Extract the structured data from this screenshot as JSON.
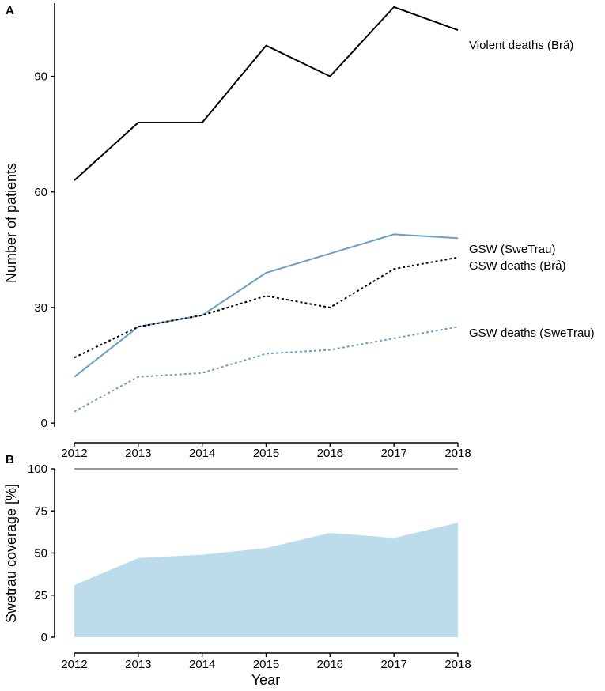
{
  "chart_data": [
    {
      "panel": "A",
      "type": "line",
      "title": "",
      "xlabel": "",
      "ylabel": "Number of patients",
      "x": [
        2012,
        2013,
        2014,
        2015,
        2016,
        2017,
        2018
      ],
      "xticks": [
        "2012",
        "2013",
        "2014",
        "2015",
        "2016",
        "2017",
        "2018"
      ],
      "yticks": [
        "0",
        "30",
        "60",
        "90"
      ],
      "ytick_values": [
        0,
        30,
        60,
        90
      ],
      "ylim": [
        -1,
        109
      ],
      "grid": false,
      "series": [
        {
          "name": "Violent deaths (Brå)",
          "values": [
            63,
            78,
            78,
            98,
            90,
            108,
            102
          ],
          "color": "#000000",
          "dash": "solid"
        },
        {
          "name": "GSW (SweTrau)",
          "values": [
            12,
            25,
            28,
            39,
            44,
            49,
            48
          ],
          "color": "#6a9fc5",
          "dash": "solid"
        },
        {
          "name": "GSW deaths (Brå)",
          "values": [
            17,
            25,
            28,
            33,
            30,
            40,
            43
          ],
          "color": "#000000",
          "dash": "dotted"
        },
        {
          "name": "GSW deaths (SweTrau)",
          "values": [
            3,
            12,
            13,
            18,
            19,
            22,
            25
          ],
          "color": "#6a9fc5",
          "dash": "dotted"
        }
      ]
    },
    {
      "panel": "B",
      "type": "area",
      "title": "",
      "xlabel": "Year",
      "ylabel": "Swetrau coverage [%]",
      "x": [
        2012,
        2013,
        2014,
        2015,
        2016,
        2017,
        2018
      ],
      "xticks": [
        "2012",
        "2013",
        "2014",
        "2015",
        "2016",
        "2017",
        "2018"
      ],
      "yticks": [
        "0",
        "25",
        "50",
        "75",
        "100"
      ],
      "ytick_values": [
        0,
        25,
        50,
        75,
        100
      ],
      "ylim": [
        0,
        100
      ],
      "grid": false,
      "reference_line": {
        "value": 100,
        "color": "#999999"
      },
      "series": [
        {
          "name": "Swetrau coverage",
          "values": [
            31,
            47,
            49,
            53,
            62,
            59,
            68
          ],
          "color": "#bcdcec"
        }
      ]
    }
  ]
}
